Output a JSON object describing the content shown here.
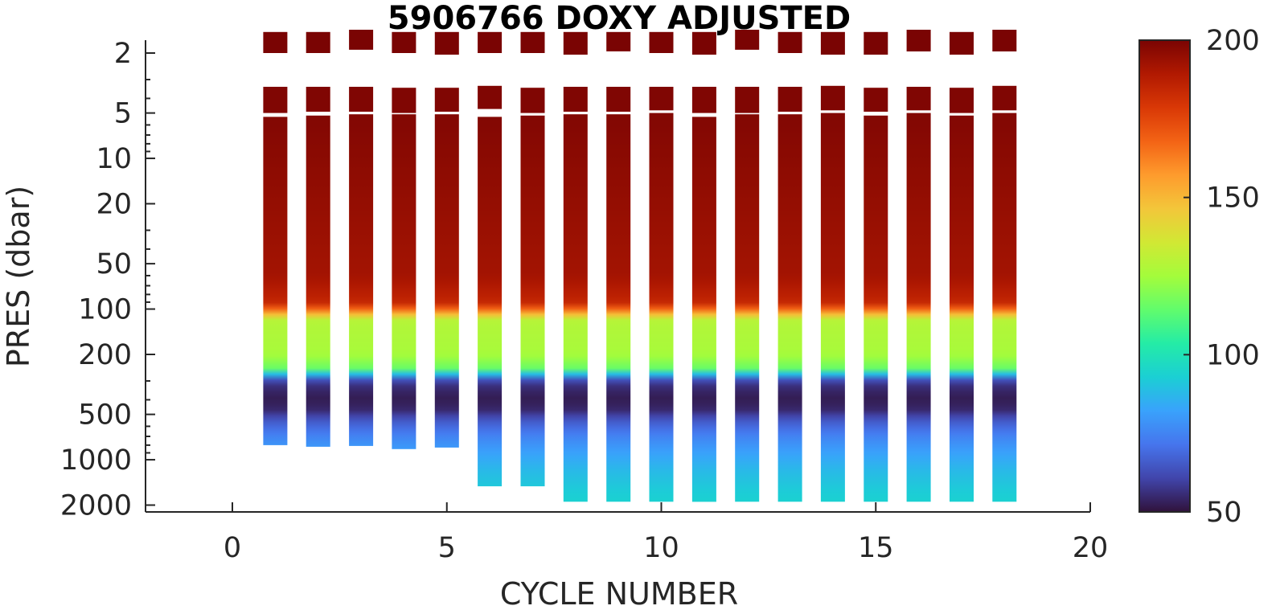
{
  "chart_data": {
    "type": "heatmap",
    "title": "5906766  DOXY ADJUSTED",
    "xlabel": "CYCLE NUMBER",
    "ylabel": "PRES (dbar)",
    "xlim": [
      -2,
      20
    ],
    "ylim": [
      1.5,
      2200
    ],
    "yscale": "log",
    "yreverse": true,
    "xticks": [
      0,
      5,
      10,
      15,
      20
    ],
    "yticks": [
      2,
      5,
      10,
      20,
      50,
      100,
      200,
      500,
      1000,
      2000
    ],
    "colorbar": {
      "min": 50,
      "max": 200,
      "ticks": [
        50,
        100,
        150,
        200
      ]
    },
    "colormap": [
      "#30123b",
      "#4145ab",
      "#4675ed",
      "#39a2fc",
      "#1bcfd4",
      "#24eca6",
      "#61fc6c",
      "#a4fc3b",
      "#d1e834",
      "#f3c63a",
      "#fe9b2d",
      "#f36315",
      "#d93806",
      "#b11901",
      "#7a0403"
    ],
    "profile_shape": {
      "pres": [
        1.5,
        6,
        60,
        90,
        105,
        115,
        130,
        200,
        250,
        290,
        330,
        400,
        470,
        550,
        700,
        900,
        1200,
        1600,
        2000
      ],
      "doxy": [
        200,
        198,
        192,
        185,
        160,
        130,
        128,
        126,
        115,
        65,
        55,
        52,
        55,
        65,
        75,
        82,
        88,
        92,
        94
      ]
    },
    "cycles": [
      {
        "cycle": 1,
        "surface": [
          1.45,
          2.0
        ],
        "upper": [
          3.35,
          5.0
        ],
        "profile": [
          5.3,
          800
        ]
      },
      {
        "cycle": 2,
        "surface": [
          1.45,
          2.0
        ],
        "upper": [
          3.35,
          4.9
        ],
        "profile": [
          5.2,
          820
        ]
      },
      {
        "cycle": 3,
        "surface": [
          1.4,
          1.9
        ],
        "upper": [
          3.35,
          4.9
        ],
        "profile": [
          5.1,
          810
        ]
      },
      {
        "cycle": 4,
        "surface": [
          1.45,
          2.0
        ],
        "upper": [
          3.4,
          5.0
        ],
        "profile": [
          5.1,
          850
        ]
      },
      {
        "cycle": 5,
        "surface": [
          1.45,
          2.05
        ],
        "upper": [
          3.4,
          4.9
        ],
        "profile": [
          5.1,
          830
        ]
      },
      {
        "cycle": 6,
        "surface": [
          1.45,
          2.0
        ],
        "upper": [
          3.3,
          4.7
        ],
        "profile": [
          5.3,
          1500
        ]
      },
      {
        "cycle": 7,
        "surface": [
          1.45,
          2.0
        ],
        "upper": [
          3.4,
          5.0
        ],
        "profile": [
          5.2,
          1500
        ]
      },
      {
        "cycle": 8,
        "surface": [
          1.45,
          2.05
        ],
        "upper": [
          3.35,
          4.9
        ],
        "profile": [
          5.1,
          1900
        ]
      },
      {
        "cycle": 9,
        "surface": [
          1.45,
          1.95
        ],
        "upper": [
          3.35,
          4.9
        ],
        "profile": [
          5.1,
          1900
        ]
      },
      {
        "cycle": 10,
        "surface": [
          1.45,
          2.0
        ],
        "upper": [
          3.35,
          4.8
        ],
        "profile": [
          5.0,
          1900
        ]
      },
      {
        "cycle": 11,
        "surface": [
          1.45,
          2.05
        ],
        "upper": [
          3.35,
          5.0
        ],
        "profile": [
          5.3,
          1900
        ]
      },
      {
        "cycle": 12,
        "surface": [
          1.4,
          1.9
        ],
        "upper": [
          3.35,
          5.0
        ],
        "profile": [
          5.1,
          1900
        ]
      },
      {
        "cycle": 13,
        "surface": [
          1.45,
          2.0
        ],
        "upper": [
          3.35,
          4.9
        ],
        "profile": [
          5.1,
          1900
        ]
      },
      {
        "cycle": 14,
        "surface": [
          1.45,
          2.05
        ],
        "upper": [
          3.3,
          4.8
        ],
        "profile": [
          5.0,
          1900
        ]
      },
      {
        "cycle": 15,
        "surface": [
          1.45,
          2.05
        ],
        "upper": [
          3.4,
          4.9
        ],
        "profile": [
          5.2,
          1900
        ]
      },
      {
        "cycle": 16,
        "surface": [
          1.4,
          1.95
        ],
        "upper": [
          3.35,
          4.8
        ],
        "profile": [
          5.0,
          1900
        ]
      },
      {
        "cycle": 17,
        "surface": [
          1.45,
          2.05
        ],
        "upper": [
          3.4,
          5.0
        ],
        "profile": [
          5.2,
          1900
        ]
      },
      {
        "cycle": 18,
        "surface": [
          1.4,
          1.95
        ],
        "upper": [
          3.3,
          4.8
        ],
        "profile": [
          5.0,
          1900
        ]
      }
    ]
  }
}
